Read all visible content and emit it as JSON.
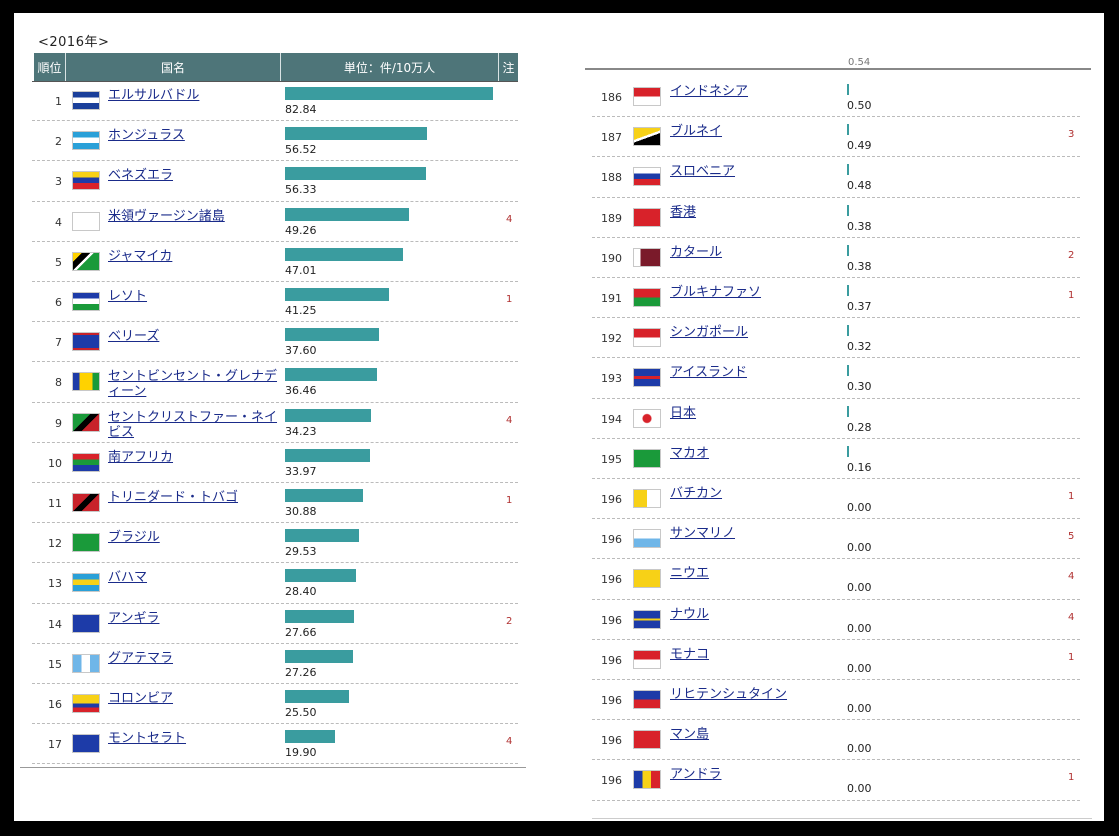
{
  "year_label": "<2016年>",
  "header": {
    "rank": "順位",
    "country": "国名",
    "unit": "単位：件/10万人",
    "note": "注"
  },
  "partial_top_value": "0.54",
  "chart_data": {
    "type": "bar",
    "scale_max": 82.84,
    "left_rows": [
      {
        "rank": "1",
        "country": "エルサルバドル",
        "value": 82.84,
        "label": "82.84",
        "note": ""
      },
      {
        "rank": "2",
        "country": "ホンジュラス",
        "value": 56.52,
        "label": "56.52",
        "note": ""
      },
      {
        "rank": "3",
        "country": "ベネズエラ",
        "value": 56.33,
        "label": "56.33",
        "note": ""
      },
      {
        "rank": "4",
        "country": "米領ヴァージン諸島",
        "value": 49.26,
        "label": "49.26",
        "note": "4"
      },
      {
        "rank": "5",
        "country": "ジャマイカ",
        "value": 47.01,
        "label": "47.01",
        "note": ""
      },
      {
        "rank": "6",
        "country": "レソト",
        "value": 41.25,
        "label": "41.25",
        "note": "1"
      },
      {
        "rank": "7",
        "country": "ベリーズ",
        "value": 37.6,
        "label": "37.60",
        "note": ""
      },
      {
        "rank": "8",
        "country": "セントビンセント・グレナディーン",
        "value": 36.46,
        "label": "36.46",
        "note": ""
      },
      {
        "rank": "9",
        "country": "セントクリストファー・ネイビス",
        "value": 34.23,
        "label": "34.23",
        "note": "4"
      },
      {
        "rank": "10",
        "country": "南アフリカ",
        "value": 33.97,
        "label": "33.97",
        "note": ""
      },
      {
        "rank": "11",
        "country": "トリニダード・トバゴ",
        "value": 30.88,
        "label": "30.88",
        "note": "1"
      },
      {
        "rank": "12",
        "country": "ブラジル",
        "value": 29.53,
        "label": "29.53",
        "note": ""
      },
      {
        "rank": "13",
        "country": "バハマ",
        "value": 28.4,
        "label": "28.40",
        "note": ""
      },
      {
        "rank": "14",
        "country": "アンギラ",
        "value": 27.66,
        "label": "27.66",
        "note": "2"
      },
      {
        "rank": "15",
        "country": "グアテマラ",
        "value": 27.26,
        "label": "27.26",
        "note": ""
      },
      {
        "rank": "16",
        "country": "コロンビア",
        "value": 25.5,
        "label": "25.50",
        "note": ""
      },
      {
        "rank": "17",
        "country": "モントセラト",
        "value": 19.9,
        "label": "19.90",
        "note": "4"
      }
    ],
    "right_rows": [
      {
        "rank": "186",
        "country": "インドネシア",
        "value": 0.5,
        "label": "0.50",
        "note": ""
      },
      {
        "rank": "187",
        "country": "ブルネイ",
        "value": 0.49,
        "label": "0.49",
        "note": "3"
      },
      {
        "rank": "188",
        "country": "スロベニア",
        "value": 0.48,
        "label": "0.48",
        "note": ""
      },
      {
        "rank": "189",
        "country": "香港",
        "value": 0.38,
        "label": "0.38",
        "note": ""
      },
      {
        "rank": "190",
        "country": "カタール",
        "value": 0.38,
        "label": "0.38",
        "note": "2"
      },
      {
        "rank": "191",
        "country": "ブルキナファソ",
        "value": 0.37,
        "label": "0.37",
        "note": "1"
      },
      {
        "rank": "192",
        "country": "シンガポール",
        "value": 0.32,
        "label": "0.32",
        "note": ""
      },
      {
        "rank": "193",
        "country": "アイスランド",
        "value": 0.3,
        "label": "0.30",
        "note": ""
      },
      {
        "rank": "194",
        "country": "日本",
        "value": 0.28,
        "label": "0.28",
        "note": ""
      },
      {
        "rank": "195",
        "country": "マカオ",
        "value": 0.16,
        "label": "0.16",
        "note": ""
      },
      {
        "rank": "196",
        "country": "バチカン",
        "value": 0.0,
        "label": "0.00",
        "note": "1"
      },
      {
        "rank": "196",
        "country": "サンマリノ",
        "value": 0.0,
        "label": "0.00",
        "note": "5"
      },
      {
        "rank": "196",
        "country": "ニウエ",
        "value": 0.0,
        "label": "0.00",
        "note": "4"
      },
      {
        "rank": "196",
        "country": "ナウル",
        "value": 0.0,
        "label": "0.00",
        "note": "4"
      },
      {
        "rank": "196",
        "country": "モナコ",
        "value": 0.0,
        "label": "0.00",
        "note": "1"
      },
      {
        "rank": "196",
        "country": "リヒテンシュタイン",
        "value": 0.0,
        "label": "0.00",
        "note": ""
      },
      {
        "rank": "196",
        "country": "マン島",
        "value": 0.0,
        "label": "0.00",
        "note": ""
      },
      {
        "rank": "196",
        "country": "アンドラ",
        "value": 0.0,
        "label": "0.00",
        "note": "1"
      }
    ]
  }
}
